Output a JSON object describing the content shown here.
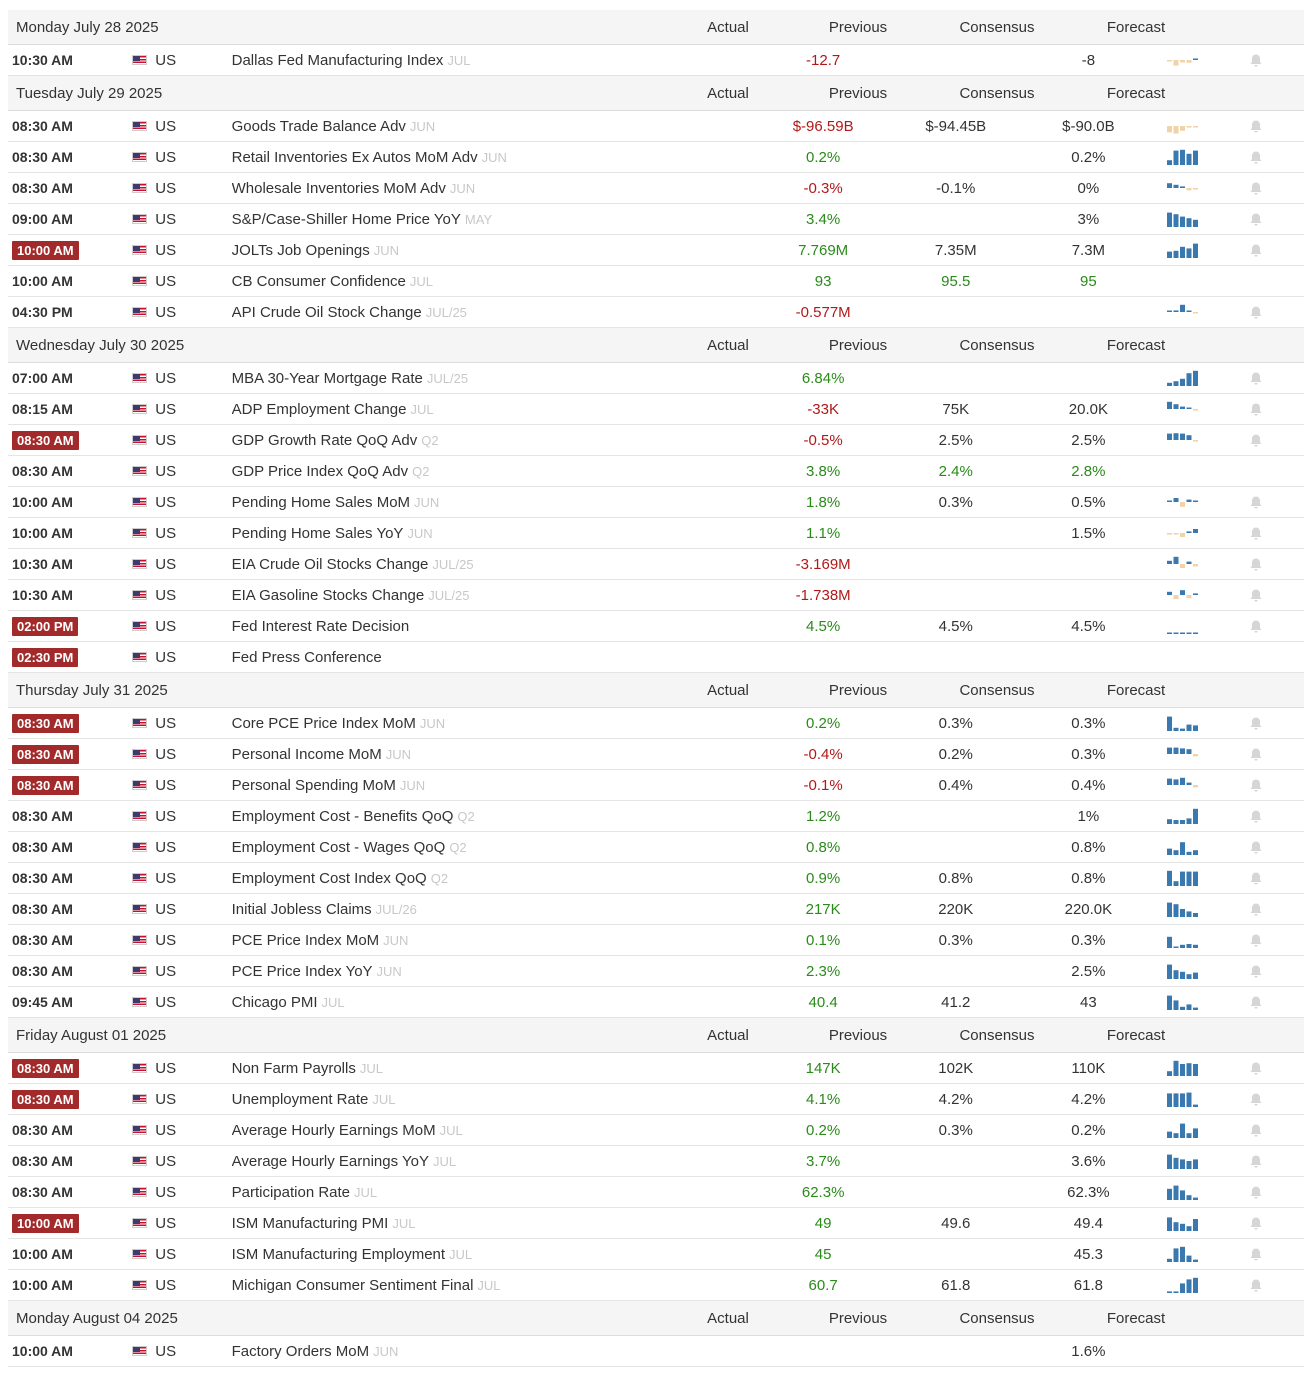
{
  "headers": {
    "actual": "Actual",
    "previous": "Previous",
    "consensus": "Consensus",
    "forecast": "Forecast"
  },
  "colors": {
    "negative": "#b21818",
    "positive": "#2a8a1a",
    "highlight_badge": "#a32a2a",
    "bar_positive": "#3a78b0",
    "bar_negative": "#f0d3a8"
  },
  "icons": {
    "flag": "us-flag-icon",
    "alert": "bell-icon",
    "chart": "sparkline-bar-chart"
  },
  "days": [
    {
      "title": "Monday July 28 2025",
      "events": [
        {
          "time": "10:30 AM",
          "country": "US",
          "name": "Dallas Fed Manufacturing Index",
          "ref": "JUL",
          "actual": "",
          "previous": "-12.7",
          "prev_color": "neg",
          "consensus": "",
          "cons_color": "",
          "forecast": "-8",
          "fore_color": "",
          "highlight": false,
          "bars": [
            -0.15,
            -0.7,
            -0.3,
            -0.35,
            0.1
          ],
          "alert": true
        }
      ]
    },
    {
      "title": "Tuesday July 29 2025",
      "events": [
        {
          "time": "08:30 AM",
          "country": "US",
          "name": "Goods Trade Balance Adv",
          "ref": "JUN",
          "actual": "",
          "previous": "$-96.59B",
          "prev_color": "neg",
          "consensus": "$-94.45B",
          "cons_color": "",
          "forecast": "$-90.0B",
          "fore_color": "",
          "highlight": false,
          "bars": [
            -0.8,
            -0.95,
            -0.6,
            -0.2,
            -0.1
          ],
          "alert": true
        },
        {
          "time": "08:30 AM",
          "country": "US",
          "name": "Retail Inventories Ex Autos MoM Adv",
          "ref": "JUN",
          "actual": "",
          "previous": "0.2%",
          "prev_color": "pos",
          "consensus": "",
          "cons_color": "",
          "forecast": "0.2%",
          "fore_color": "",
          "highlight": false,
          "bars": [
            0.3,
            0.9,
            0.95,
            0.7,
            0.9
          ],
          "alert": true
        },
        {
          "time": "08:30 AM",
          "country": "US",
          "name": "Wholesale Inventories MoM Adv",
          "ref": "JUN",
          "actual": "",
          "previous": "-0.3%",
          "prev_color": "neg",
          "consensus": "-0.1%",
          "cons_color": "",
          "forecast": "0%",
          "fore_color": "",
          "highlight": false,
          "bars": [
            0.6,
            0.4,
            0.2,
            -0.3,
            -0.2
          ],
          "alert": true
        },
        {
          "time": "09:00 AM",
          "country": "US",
          "name": "S&P/Case-Shiller Home Price YoY",
          "ref": "MAY",
          "actual": "",
          "previous": "3.4%",
          "prev_color": "pos",
          "consensus": "",
          "cons_color": "",
          "forecast": "3%",
          "fore_color": "",
          "highlight": false,
          "bars": [
            0.9,
            0.8,
            0.65,
            0.55,
            0.45
          ],
          "alert": true
        },
        {
          "time": "10:00 AM",
          "country": "US",
          "name": "JOLTs Job Openings",
          "ref": "JUN",
          "actual": "",
          "previous": "7.769M",
          "prev_color": "pos",
          "consensus": "7.35M",
          "cons_color": "",
          "forecast": "7.3M",
          "fore_color": "",
          "highlight": true,
          "bars": [
            0.4,
            0.45,
            0.7,
            0.6,
            0.9
          ],
          "alert": true
        },
        {
          "time": "10:00 AM",
          "country": "US",
          "name": "CB Consumer Confidence",
          "ref": "JUL",
          "actual": "",
          "previous": "93",
          "prev_color": "pos",
          "consensus": "95.5",
          "cons_color": "pos",
          "forecast": "95",
          "fore_color": "pos",
          "highlight": false,
          "bars": [],
          "alert": false
        },
        {
          "time": "04:30 PM",
          "country": "US",
          "name": "API Crude Oil Stock Change",
          "ref": "JUL/25",
          "actual": "",
          "previous": "-0.577M",
          "prev_color": "neg",
          "consensus": "",
          "cons_color": "",
          "forecast": "",
          "fore_color": "",
          "highlight": false,
          "bars": [
            0.1,
            0.2,
            0.9,
            0.1,
            -0.1
          ],
          "alert": true
        }
      ]
    },
    {
      "title": "Wednesday July 30 2025",
      "events": [
        {
          "time": "07:00 AM",
          "country": "US",
          "name": "MBA 30-Year Mortgage Rate",
          "ref": "JUL/25",
          "actual": "",
          "previous": "6.84%",
          "prev_color": "pos",
          "consensus": "",
          "cons_color": "",
          "forecast": "",
          "fore_color": "",
          "highlight": false,
          "bars": [
            0.2,
            0.3,
            0.45,
            0.8,
            0.95
          ],
          "alert": true
        },
        {
          "time": "08:15 AM",
          "country": "US",
          "name": "ADP Employment Change",
          "ref": "JUL",
          "actual": "",
          "previous": "-33K",
          "prev_color": "neg",
          "consensus": "75K",
          "cons_color": "",
          "forecast": "20.0K",
          "fore_color": "",
          "highlight": false,
          "bars": [
            0.9,
            0.6,
            0.3,
            0.15,
            -0.2
          ],
          "alert": true
        },
        {
          "time": "08:30 AM",
          "country": "US",
          "name": "GDP Growth Rate QoQ Adv",
          "ref": "Q2",
          "actual": "",
          "previous": "-0.5%",
          "prev_color": "neg",
          "consensus": "2.5%",
          "cons_color": "",
          "forecast": "2.5%",
          "fore_color": "",
          "highlight": true,
          "bars": [
            0.8,
            0.85,
            0.8,
            0.6,
            -0.2
          ],
          "alert": true
        },
        {
          "time": "08:30 AM",
          "country": "US",
          "name": "GDP Price Index QoQ Adv",
          "ref": "Q2",
          "actual": "",
          "previous": "3.8%",
          "prev_color": "pos",
          "consensus": "2.4%",
          "cons_color": "pos",
          "forecast": "2.8%",
          "fore_color": "pos",
          "highlight": false,
          "bars": [],
          "alert": false
        },
        {
          "time": "10:00 AM",
          "country": "US",
          "name": "Pending Home Sales MoM",
          "ref": "JUN",
          "actual": "",
          "previous": "1.8%",
          "prev_color": "pos",
          "consensus": "0.3%",
          "cons_color": "",
          "forecast": "0.5%",
          "fore_color": "",
          "highlight": false,
          "bars": [
            0.1,
            0.5,
            -0.6,
            0.3,
            0.1
          ],
          "alert": true
        },
        {
          "time": "10:00 AM",
          "country": "US",
          "name": "Pending Home Sales YoY",
          "ref": "JUN",
          "actual": "",
          "previous": "1.1%",
          "prev_color": "pos",
          "consensus": "",
          "cons_color": "",
          "forecast": "1.5%",
          "fore_color": "",
          "highlight": false,
          "bars": [
            -0.2,
            -0.2,
            -0.5,
            0.2,
            0.5
          ],
          "alert": true
        },
        {
          "time": "10:30 AM",
          "country": "US",
          "name": "EIA Crude Oil Stocks Change",
          "ref": "JUL/25",
          "actual": "",
          "previous": "-3.169M",
          "prev_color": "neg",
          "consensus": "",
          "cons_color": "",
          "forecast": "",
          "fore_color": "",
          "highlight": false,
          "bars": [
            0.4,
            0.9,
            -0.5,
            0.3,
            -0.3
          ],
          "alert": true
        },
        {
          "time": "10:30 AM",
          "country": "US",
          "name": "EIA Gasoline Stocks Change",
          "ref": "JUL/25",
          "actual": "",
          "previous": "-1.738M",
          "prev_color": "neg",
          "consensus": "",
          "cons_color": "",
          "forecast": "",
          "fore_color": "",
          "highlight": false,
          "bars": [
            0.4,
            -0.5,
            0.6,
            -0.4,
            0.2
          ],
          "alert": true
        },
        {
          "time": "02:00 PM",
          "country": "US",
          "name": "Fed Interest Rate Decision",
          "ref": "",
          "actual": "",
          "previous": "4.5%",
          "prev_color": "pos",
          "consensus": "4.5%",
          "cons_color": "",
          "forecast": "4.5%",
          "fore_color": "",
          "highlight": true,
          "bars": [
            0.08,
            0.08,
            0.08,
            0.08,
            0.08
          ],
          "alert": true
        },
        {
          "time": "02:30 PM",
          "country": "US",
          "name": "Fed Press Conference",
          "ref": "",
          "actual": "",
          "previous": "",
          "prev_color": "",
          "consensus": "",
          "cons_color": "",
          "forecast": "",
          "fore_color": "",
          "highlight": true,
          "bars": [],
          "alert": false
        }
      ]
    },
    {
      "title": "Thursday July 31 2025",
      "events": [
        {
          "time": "08:30 AM",
          "country": "US",
          "name": "Core PCE Price Index MoM",
          "ref": "JUN",
          "actual": "",
          "previous": "0.2%",
          "prev_color": "pos",
          "consensus": "0.3%",
          "cons_color": "",
          "forecast": "0.3%",
          "fore_color": "",
          "highlight": true,
          "bars": [
            0.9,
            0.2,
            0.15,
            0.4,
            0.35
          ],
          "alert": true
        },
        {
          "time": "08:30 AM",
          "country": "US",
          "name": "Personal Income MoM",
          "ref": "JUN",
          "actual": "",
          "previous": "-0.4%",
          "prev_color": "neg",
          "consensus": "0.2%",
          "cons_color": "",
          "forecast": "0.3%",
          "fore_color": "",
          "highlight": true,
          "bars": [
            0.8,
            0.8,
            0.7,
            0.6,
            -0.3
          ],
          "alert": true
        },
        {
          "time": "08:30 AM",
          "country": "US",
          "name": "Personal Spending MoM",
          "ref": "JUN",
          "actual": "",
          "previous": "-0.1%",
          "prev_color": "neg",
          "consensus": "0.4%",
          "cons_color": "",
          "forecast": "0.4%",
          "fore_color": "",
          "highlight": true,
          "bars": [
            0.8,
            0.7,
            0.9,
            0.3,
            -0.3
          ],
          "alert": true
        },
        {
          "time": "08:30 AM",
          "country": "US",
          "name": "Employment Cost - Benefits QoQ",
          "ref": "Q2",
          "actual": "",
          "previous": "1.2%",
          "prev_color": "pos",
          "consensus": "",
          "cons_color": "",
          "forecast": "1%",
          "fore_color": "",
          "highlight": false,
          "bars": [
            0.3,
            0.25,
            0.25,
            0.35,
            0.95
          ],
          "alert": true
        },
        {
          "time": "08:30 AM",
          "country": "US",
          "name": "Employment Cost - Wages QoQ",
          "ref": "Q2",
          "actual": "",
          "previous": "0.8%",
          "prev_color": "pos",
          "consensus": "",
          "cons_color": "",
          "forecast": "0.8%",
          "fore_color": "",
          "highlight": false,
          "bars": [
            0.4,
            0.3,
            0.8,
            0.2,
            0.3
          ],
          "alert": true
        },
        {
          "time": "08:30 AM",
          "country": "US",
          "name": "Employment Cost Index QoQ",
          "ref": "Q2",
          "actual": "",
          "previous": "0.9%",
          "prev_color": "pos",
          "consensus": "0.8%",
          "cons_color": "",
          "forecast": "0.8%",
          "fore_color": "",
          "highlight": false,
          "bars": [
            0.95,
            0.3,
            0.9,
            0.9,
            0.9
          ],
          "alert": true
        },
        {
          "time": "08:30 AM",
          "country": "US",
          "name": "Initial Jobless Claims",
          "ref": "JUL/26",
          "actual": "",
          "previous": "217K",
          "prev_color": "pos",
          "consensus": "220K",
          "cons_color": "",
          "forecast": "220.0K",
          "fore_color": "",
          "highlight": false,
          "bars": [
            0.9,
            0.8,
            0.5,
            0.35,
            0.25
          ],
          "alert": true
        },
        {
          "time": "08:30 AM",
          "country": "US",
          "name": "PCE Price Index MoM",
          "ref": "JUN",
          "actual": "",
          "previous": "0.1%",
          "prev_color": "pos",
          "consensus": "0.3%",
          "cons_color": "",
          "forecast": "0.3%",
          "fore_color": "",
          "highlight": false,
          "bars": [
            0.7,
            0.0,
            0.2,
            0.25,
            0.2
          ],
          "alert": true
        },
        {
          "time": "08:30 AM",
          "country": "US",
          "name": "PCE Price Index YoY",
          "ref": "JUN",
          "actual": "",
          "previous": "2.3%",
          "prev_color": "pos",
          "consensus": "",
          "cons_color": "",
          "forecast": "2.5%",
          "fore_color": "",
          "highlight": false,
          "bars": [
            0.9,
            0.55,
            0.45,
            0.3,
            0.4
          ],
          "alert": true
        },
        {
          "time": "09:45 AM",
          "country": "US",
          "name": "Chicago PMI",
          "ref": "JUL",
          "actual": "",
          "previous": "40.4",
          "prev_color": "pos",
          "consensus": "41.2",
          "cons_color": "",
          "forecast": "43",
          "fore_color": "",
          "highlight": false,
          "bars": [
            0.9,
            0.6,
            0.2,
            0.35,
            0.15
          ],
          "alert": true
        }
      ]
    },
    {
      "title": "Friday August 01 2025",
      "events": [
        {
          "time": "08:30 AM",
          "country": "US",
          "name": "Non Farm Payrolls",
          "ref": "JUL",
          "actual": "",
          "previous": "147K",
          "prev_color": "pos",
          "consensus": "102K",
          "cons_color": "",
          "forecast": "110K",
          "fore_color": "",
          "highlight": true,
          "bars": [
            0.3,
            0.95,
            0.75,
            0.8,
            0.75
          ],
          "alert": true
        },
        {
          "time": "08:30 AM",
          "country": "US",
          "name": "Unemployment Rate",
          "ref": "JUL",
          "actual": "",
          "previous": "4.1%",
          "prev_color": "pos",
          "consensus": "4.2%",
          "cons_color": "",
          "forecast": "4.2%",
          "fore_color": "",
          "highlight": true,
          "bars": [
            0.85,
            0.85,
            0.85,
            0.9,
            0.15
          ],
          "alert": true
        },
        {
          "time": "08:30 AM",
          "country": "US",
          "name": "Average Hourly Earnings MoM",
          "ref": "JUL",
          "actual": "",
          "previous": "0.2%",
          "prev_color": "pos",
          "consensus": "0.3%",
          "cons_color": "",
          "forecast": "0.2%",
          "fore_color": "",
          "highlight": false,
          "bars": [
            0.4,
            0.3,
            0.9,
            0.3,
            0.6
          ],
          "alert": true
        },
        {
          "time": "08:30 AM",
          "country": "US",
          "name": "Average Hourly Earnings YoY",
          "ref": "JUL",
          "actual": "",
          "previous": "3.7%",
          "prev_color": "pos",
          "consensus": "",
          "cons_color": "",
          "forecast": "3.6%",
          "fore_color": "",
          "highlight": false,
          "bars": [
            0.9,
            0.7,
            0.6,
            0.5,
            0.6
          ],
          "alert": true
        },
        {
          "time": "08:30 AM",
          "country": "US",
          "name": "Participation Rate",
          "ref": "JUL",
          "actual": "",
          "previous": "62.3%",
          "prev_color": "pos",
          "consensus": "",
          "cons_color": "",
          "forecast": "62.3%",
          "fore_color": "",
          "highlight": false,
          "bars": [
            0.7,
            0.9,
            0.6,
            0.3,
            0.15
          ],
          "alert": true
        },
        {
          "time": "10:00 AM",
          "country": "US",
          "name": "ISM Manufacturing PMI",
          "ref": "JUL",
          "actual": "",
          "previous": "49",
          "prev_color": "pos",
          "consensus": "49.6",
          "cons_color": "",
          "forecast": "49.4",
          "fore_color": "",
          "highlight": true,
          "bars": [
            0.85,
            0.55,
            0.45,
            0.3,
            0.75
          ],
          "alert": true
        },
        {
          "time": "10:00 AM",
          "country": "US",
          "name": "ISM Manufacturing Employment",
          "ref": "JUL",
          "actual": "",
          "previous": "45",
          "prev_color": "pos",
          "consensus": "",
          "cons_color": "",
          "forecast": "45.3",
          "fore_color": "",
          "highlight": false,
          "bars": [
            0.2,
            0.85,
            0.95,
            0.4,
            0.15
          ],
          "alert": true
        },
        {
          "time": "10:00 AM",
          "country": "US",
          "name": "Michigan Consumer Sentiment Final",
          "ref": "JUL",
          "actual": "",
          "previous": "60.7",
          "prev_color": "pos",
          "consensus": "61.8",
          "cons_color": "",
          "forecast": "61.8",
          "fore_color": "",
          "highlight": false,
          "bars": [
            0.1,
            0.1,
            0.6,
            0.85,
            0.95
          ],
          "alert": true
        }
      ]
    },
    {
      "title": "Monday August 04 2025",
      "events": [
        {
          "time": "10:00 AM",
          "country": "US",
          "name": "Factory Orders MoM",
          "ref": "JUN",
          "actual": "",
          "previous": "",
          "prev_color": "",
          "consensus": "",
          "cons_color": "",
          "forecast": "1.6%",
          "fore_color": "",
          "highlight": false,
          "bars": [],
          "alert": false
        }
      ]
    }
  ]
}
